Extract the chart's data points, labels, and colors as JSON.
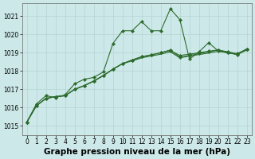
{
  "xlabel": "Graphe pression niveau de la mer (hPa)",
  "xlabel_fontsize": 7.5,
  "xlim": [
    -0.5,
    23.5
  ],
  "ylim": [
    1014.5,
    1021.7
  ],
  "yticks": [
    1015,
    1016,
    1017,
    1018,
    1019,
    1020,
    1021
  ],
  "xticks": [
    0,
    1,
    2,
    3,
    4,
    5,
    6,
    7,
    8,
    9,
    10,
    11,
    12,
    13,
    14,
    15,
    16,
    17,
    18,
    19,
    20,
    21,
    22,
    23
  ],
  "bg_color": "#cce8e8",
  "grid_color": "#b0d0d0",
  "line_color": "#2d6b2d",
  "main_series": [
    1015.2,
    1016.2,
    1016.65,
    1016.55,
    1016.7,
    1017.3,
    1017.55,
    1017.65,
    1017.95,
    1019.5,
    1020.2,
    1020.2,
    1020.7,
    1020.2,
    1020.2,
    1021.4,
    1020.8,
    1018.65,
    1019.05,
    1019.55,
    1019.1,
    1019.0,
    1018.9,
    1019.2
  ],
  "line2": [
    1015.2,
    1016.1,
    1016.5,
    1016.6,
    1016.65,
    1017.0,
    1017.2,
    1017.45,
    1017.75,
    1018.1,
    1018.4,
    1018.6,
    1018.78,
    1018.88,
    1019.0,
    1019.12,
    1018.85,
    1018.92,
    1019.0,
    1019.08,
    1019.15,
    1019.05,
    1018.95,
    1019.2
  ],
  "line3": [
    1015.2,
    1016.1,
    1016.5,
    1016.6,
    1016.65,
    1017.0,
    1017.2,
    1017.45,
    1017.75,
    1018.1,
    1018.4,
    1018.6,
    1018.78,
    1018.88,
    1019.0,
    1019.15,
    1018.75,
    1018.85,
    1018.95,
    1019.05,
    1019.15,
    1019.0,
    1018.92,
    1019.2
  ],
  "line4": [
    1015.2,
    1016.1,
    1016.5,
    1016.6,
    1016.65,
    1017.0,
    1017.2,
    1017.45,
    1017.75,
    1018.1,
    1018.4,
    1018.55,
    1018.72,
    1018.82,
    1018.92,
    1019.05,
    1018.72,
    1018.82,
    1018.9,
    1018.98,
    1019.08,
    1019.0,
    1018.9,
    1019.15
  ],
  "tick_fontsize": 5.5,
  "linewidth": 0.8,
  "marker_size": 2.2,
  "figsize": [
    3.2,
    2.0
  ],
  "dpi": 100
}
